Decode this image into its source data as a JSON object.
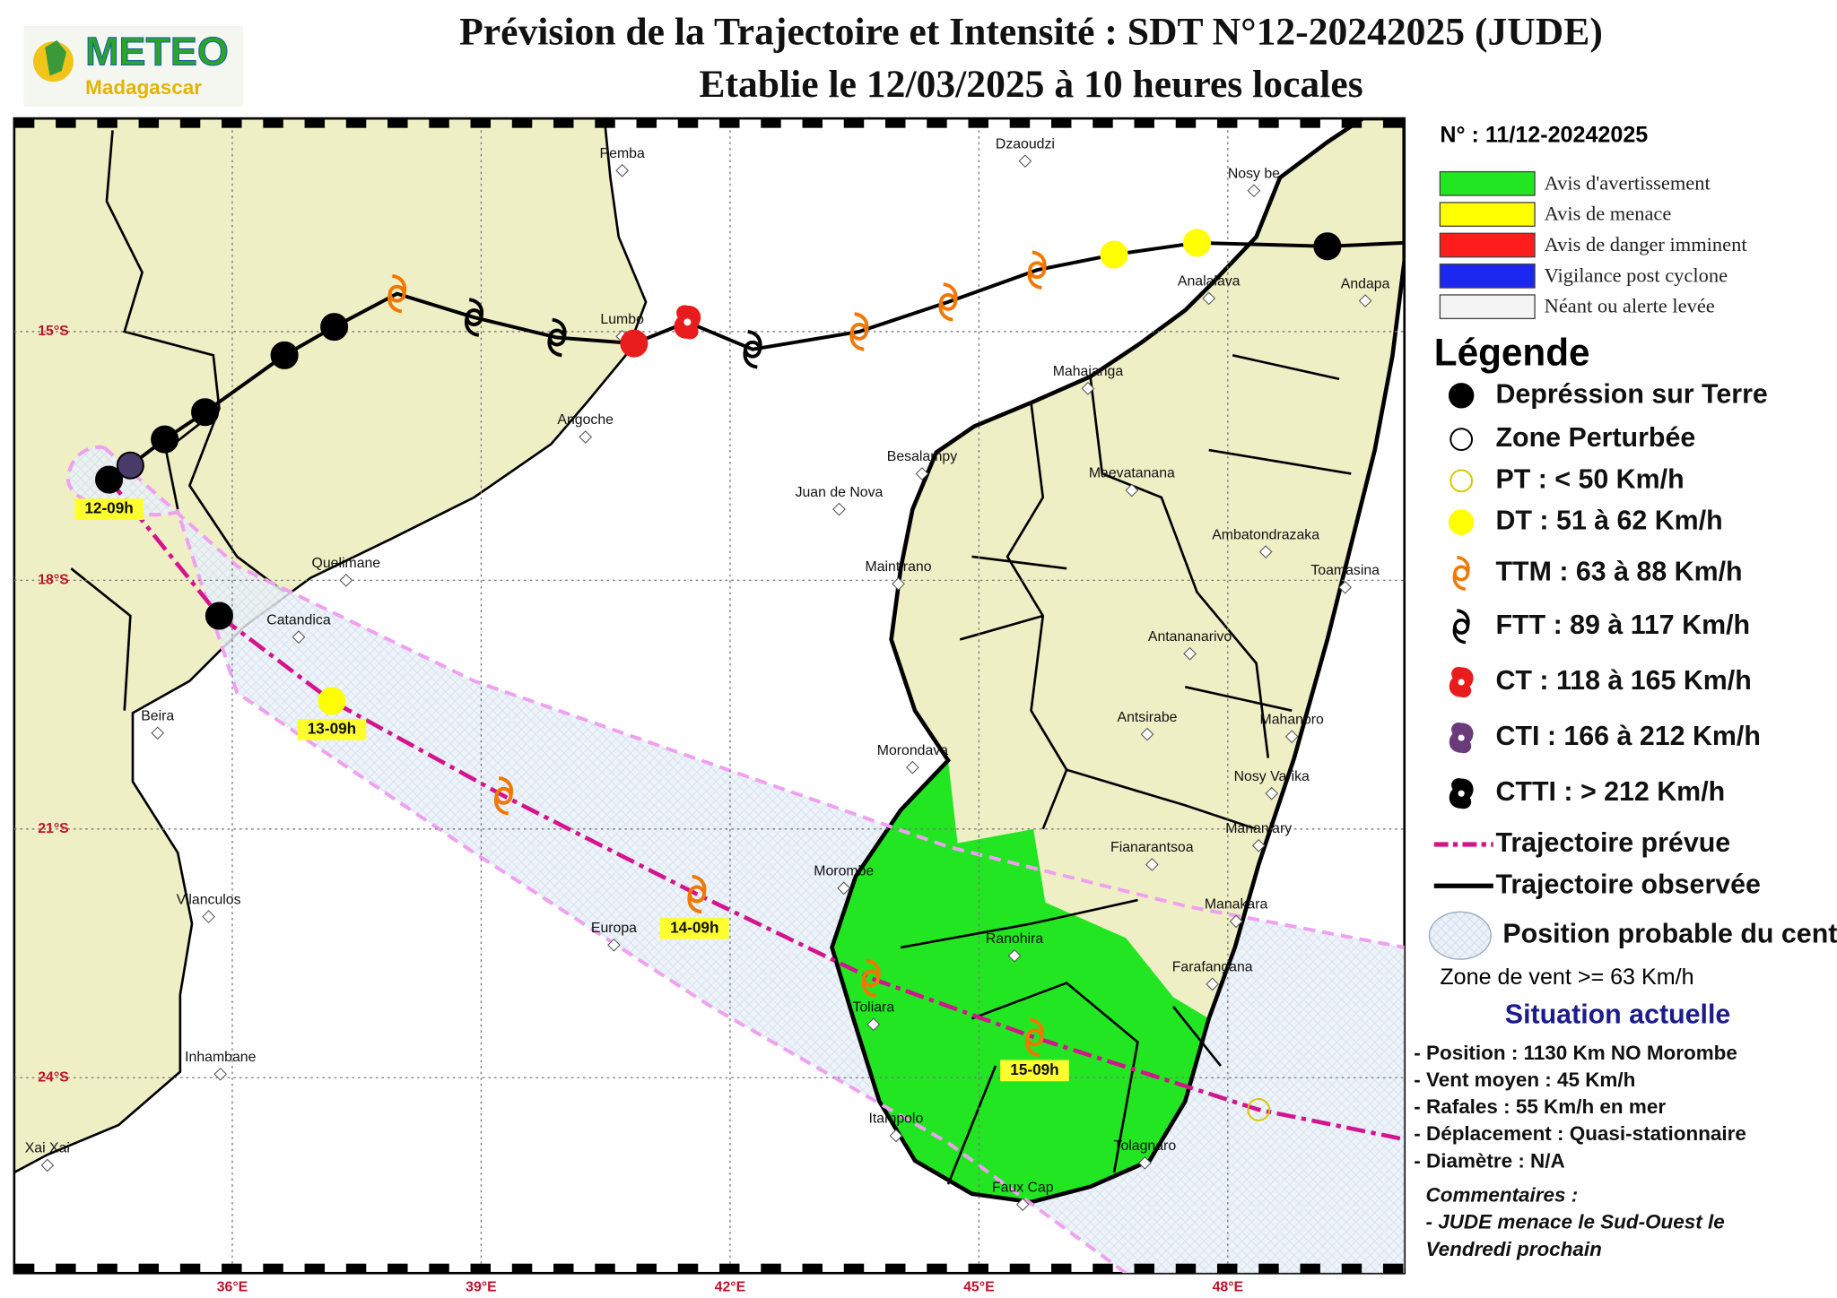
{
  "header": {
    "logo_title": "METEO",
    "logo_subtitle": "Madagascar",
    "title": "Prévision de la Trajectoire et Intensité : SDT N°12-20242025 (JUDE)",
    "subtitle": "Etablie le 12/03/2025 à 10 heures locales"
  },
  "map": {
    "lat_labels": [
      "15°S",
      "18°S",
      "21°S",
      "24°S"
    ],
    "lon_labels": [
      "36°E",
      "39°E",
      "42°E",
      "45°E",
      "48°E"
    ],
    "time_labels": [
      "12-09h",
      "13-09h",
      "14-09h",
      "15-09h"
    ],
    "places": [
      "Pemba",
      "Dzaoudzi",
      "Nosy be",
      "Lumbo",
      "Analalava",
      "Andapa",
      "Mahajanga",
      "Angoche",
      "Besalampy",
      "Maevatanana",
      "Juan de Nova",
      "Ambatondrazaka",
      "Toamasina",
      "Maintirano",
      "Quelimane",
      "Catandica",
      "Antananarivo",
      "Beira",
      "Antsirabe",
      "Mahanoro",
      "Morondava",
      "Nosy Varika",
      "Mananjary",
      "Fianarantsoa",
      "Morombe",
      "Manakara",
      "Vilanculos",
      "Europa",
      "Ranohira",
      "Farafangana",
      "Toliara",
      "Inhambane",
      "Itampolo",
      "Tolagnaro",
      "Faux Cap",
      "Xai Xai"
    ]
  },
  "sidebar": {
    "bulletin": "N° : 11/12-20242025",
    "alerts": [
      "Avis d'avertissement",
      "Avis de menace",
      "Avis de danger imminent",
      "Vigilance post cyclone",
      "Néant ou alerte levée"
    ],
    "legend_title": "Légende",
    "legend": [
      "Depréssion sur Terre",
      "Zone Perturbée",
      "PT : < 50 Km/h",
      "DT : 51 à 62 Km/h",
      "TTM : 63 à 88 Km/h",
      "FTT : 89 à 117 Km/h",
      "CT : 118 à 165 Km/h",
      "CTI : 166 à 212 Km/h",
      "CTTI : > 212 Km/h",
      "Trajectoire prévue",
      "Trajectoire observée",
      "Position probable du centre"
    ],
    "wind_zone": "Zone de vent >= 63 Km/h",
    "situation_title": "Situation actuelle",
    "situation": [
      "- Position : 1130 Km NO Morombe",
      "- Vent moyen : 45 Km/h",
      "- Rafales : 55 Km/h en mer",
      "- Déplacement : Quasi-stationnaire",
      "- Diamètre : N/A"
    ],
    "comments_title": "Commentaires :",
    "comments": [
      "- JUDE menace le Sud-Ouest le",
      "Vendredi prochain"
    ]
  }
}
